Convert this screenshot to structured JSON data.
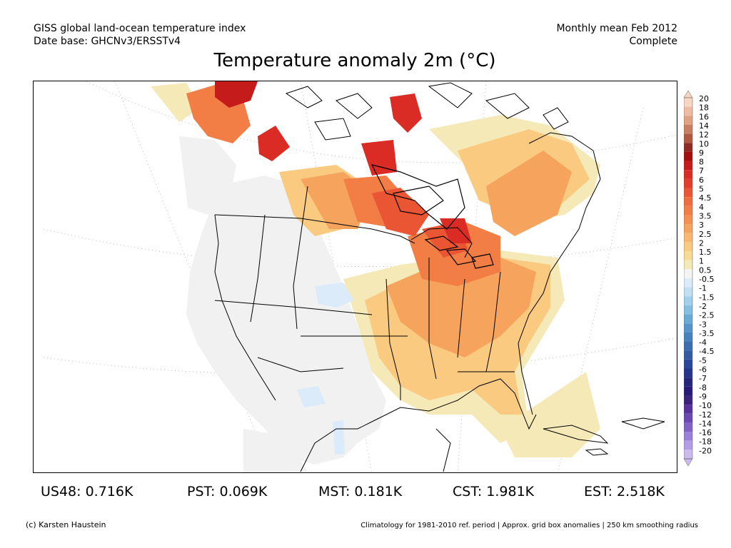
{
  "header": {
    "left_line1": "GISS global land-ocean temperature index",
    "left_line2": "Date base: GHCNv3/ERSSTv4",
    "right_line1": "Monthly mean Feb 2012",
    "right_line2": "Complete"
  },
  "title": "Temperature anomaly 2m (°C)",
  "colorbar": {
    "levels": [
      "20",
      "18",
      "16",
      "14",
      "12",
      "10",
      "9",
      "8",
      "7",
      "6",
      "5",
      "4.5",
      "4",
      "3.5",
      "3",
      "2.5",
      "2",
      "1.5",
      "1",
      "0.5",
      "-0.5",
      "-1",
      "-1.5",
      "-2",
      "-2.5",
      "-3",
      "-3.5",
      "-4",
      "-4.5",
      "-5",
      "-6",
      "-7",
      "-8",
      "-9",
      "-10",
      "-12",
      "-14",
      "-16",
      "-18",
      "-20"
    ],
    "colors": [
      "#f7d6c4",
      "#eebca2",
      "#e0a282",
      "#c98062",
      "#b05a42",
      "#8f2c22",
      "#a60d0d",
      "#c51b1b",
      "#db2b25",
      "#e23d2b",
      "#ea5533",
      "#ef6c3c",
      "#f27e45",
      "#f59150",
      "#f6a35d",
      "#f8b86f",
      "#f9ca80",
      "#f8da95",
      "#f5e9b8",
      "#f4f4f4",
      "#dcebf9",
      "#c0dff3",
      "#a2d0ec",
      "#86bfe3",
      "#6aaad7",
      "#5595c9",
      "#4682bc",
      "#3b6eb0",
      "#325ba3",
      "#2a4897",
      "#25358b",
      "#26257e",
      "#2a1a78",
      "#3a237f",
      "#56329a",
      "#6b49b2",
      "#8262c7",
      "#9b80d8",
      "#b39de6",
      "#cbbaf0"
    ]
  },
  "stats": [
    {
      "label": "US48: 0.716K"
    },
    {
      "label": "PST: 0.069K"
    },
    {
      "label": "MST: 0.181K"
    },
    {
      "label": "CST: 1.981K"
    },
    {
      "label": "EST: 2.518K"
    }
  ],
  "footer": {
    "credit": "(c) Karsten Haustein",
    "note": "Climatology for 1981-2010 ref. period | Approx. grid box anomalies | 250 km smoothing radius"
  }
}
